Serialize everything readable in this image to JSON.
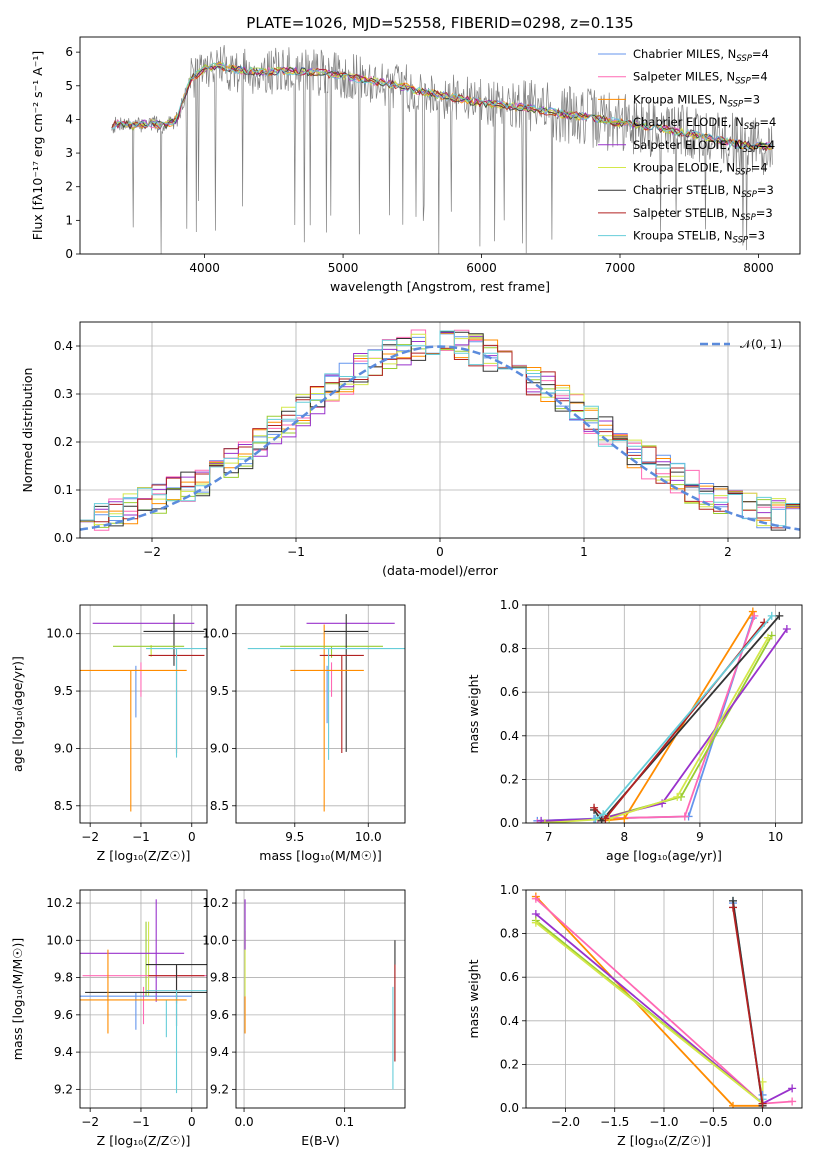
{
  "title": "PLATE=1026, MJD=52558, FIBERID=0298, z=0.135",
  "chart_data": [
    {
      "id": "spectrum",
      "type": "line",
      "xlabel": "wavelength [Angstrom, rest frame]",
      "ylabel": "Flux [fλ10⁻¹⁷ erg cm⁻² s⁻¹ A⁻¹]",
      "xlim": [
        3100,
        8300
      ],
      "ylim": [
        0,
        6.45
      ],
      "xticks": [
        4000,
        5000,
        6000,
        7000,
        8000
      ],
      "yticks": [
        0,
        1,
        2,
        3,
        4,
        5,
        6
      ],
      "grid": false,
      "legend": "top-right",
      "observed_color": "#808080",
      "continuum": {
        "x": [
          3330,
          3400,
          3500,
          3600,
          3700,
          3800,
          3900,
          4000,
          4100,
          4200,
          4400,
          4600,
          4800,
          5000,
          5200,
          5400,
          5600,
          5800,
          6000,
          6200,
          6400,
          6600,
          6800,
          7000,
          7200,
          7400,
          7600,
          7800,
          8000,
          8100
        ],
        "y": [
          3.8,
          3.9,
          3.8,
          3.9,
          3.8,
          4.0,
          5.2,
          5.5,
          5.6,
          5.5,
          5.4,
          5.45,
          5.4,
          5.3,
          5.15,
          5.0,
          4.8,
          4.65,
          4.5,
          4.4,
          4.3,
          4.15,
          4.05,
          3.9,
          3.8,
          3.65,
          3.5,
          3.3,
          3.2,
          3.2
        ]
      },
      "series": [
        {
          "name": "Chabrier MILES, N",
          "sub": "SSP",
          "count": "=4",
          "color": "#6495ed"
        },
        {
          "name": "Salpeter MILES, N",
          "sub": "SSP",
          "count": "=4",
          "color": "#ff69b4"
        },
        {
          "name": "Kroupa MILES, N",
          "sub": "SSP",
          "count": "=3",
          "color": "#ff8c00"
        },
        {
          "name": "Chabrier ELODIE, N",
          "sub": "SSP",
          "count": "=4",
          "color": "#9acd32"
        },
        {
          "name": "Salpeter ELODIE, N",
          "sub": "SSP",
          "count": "=4",
          "color": "#9932cc"
        },
        {
          "name": "Kroupa ELODIE, N",
          "sub": "SSP",
          "count": "=4",
          "color": "#d4e84a"
        },
        {
          "name": "Chabrier STELIB, N",
          "sub": "SSP",
          "count": "=3",
          "color": "#333333"
        },
        {
          "name": "Salpeter STELIB, N",
          "sub": "SSP",
          "count": "=3",
          "color": "#b22222"
        },
        {
          "name": "Kroupa STELIB, N",
          "sub": "SSP",
          "count": "=3",
          "color": "#66cdd9"
        }
      ]
    },
    {
      "id": "residuals",
      "type": "line",
      "xlabel": "(data-model)/error",
      "ylabel": "Normed distribution",
      "xlim": [
        -2.5,
        2.5
      ],
      "ylim": [
        0,
        0.45
      ],
      "xticks": [
        -2,
        -1,
        0,
        1,
        2
      ],
      "yticks": [
        0.0,
        0.1,
        0.2,
        0.3,
        0.4
      ],
      "grid": true,
      "legend": "top-right",
      "gaussian": {
        "name": "𝒩(0, 1)",
        "mean": 0,
        "sigma": 1,
        "color": "#5b8bdc"
      },
      "bin_width": 0.1
    },
    {
      "id": "age-vs-Z",
      "type": "scatter",
      "xlabel": "Z [log₁₀(Z/Z☉)]",
      "ylabel": "age  [log₁₀(age/yr)]",
      "xlim": [
        -2.2,
        0.3
      ],
      "ylim": [
        8.35,
        10.25
      ],
      "xticks": [
        -2,
        -1,
        0
      ],
      "yticks": [
        8.5,
        9.0,
        9.5,
        10.0
      ],
      "grid": true,
      "points": [
        {
          "x": -1.1,
          "xerr": 0.0,
          "y": 9.72,
          "yerr": [
            0.45,
            0.0
          ],
          "c": "#6495ed"
        },
        {
          "x": -1.0,
          "xerr": 0.0,
          "y": 9.75,
          "yerr": [
            0.3,
            0.0
          ],
          "c": "#ff69b4"
        },
        {
          "x": -0.8,
          "xerr": 0.0,
          "y": 9.9,
          "yerr": [
            0.1,
            0.0
          ],
          "c": "#9acd32"
        },
        {
          "x": -0.95,
          "xerr": 1.0,
          "y": 10.09,
          "yerr": [
            0.0,
            0.0
          ],
          "c": "#9932cc"
        },
        {
          "x": -0.8,
          "xerr": 0.0,
          "y": 9.9,
          "yerr": [
            0.1,
            0.0
          ],
          "c": "#d4e84a"
        },
        {
          "x": -0.35,
          "xerr": 0.6,
          "y": 10.02,
          "yerr": [
            0.3,
            0.15
          ],
          "c": "#333333"
        },
        {
          "x": -0.3,
          "xerr": 0.55,
          "y": 9.81,
          "yerr": [
            0.85,
            0.0
          ],
          "c": "#b22222"
        },
        {
          "x": -0.3,
          "xerr": 0.6,
          "y": 9.87,
          "yerr": [
            0.95,
            0.0
          ],
          "c": "#66cdd9"
        },
        {
          "x": -1.2,
          "xerr": 1.1,
          "y": 9.68,
          "yerr": [
            1.23,
            0.0
          ],
          "c": "#ff8c00"
        },
        {
          "x": -0.85,
          "xerr": 0.7,
          "y": 9.89,
          "yerr": [
            0.0,
            0.0
          ],
          "c": "#9acd32"
        }
      ]
    },
    {
      "id": "age-vs-mass",
      "type": "scatter",
      "xlabel": "mass [log₁₀(M/M☉)]",
      "ylabel": "",
      "xlim": [
        9.1,
        10.25
      ],
      "ylim": [
        8.35,
        10.25
      ],
      "xticks": [
        9.5,
        10.0
      ],
      "yticks": [
        8.5,
        9.0,
        9.5,
        10.0
      ],
      "grid": true,
      "points": [
        {
          "x": 9.72,
          "xerr": 0.0,
          "y": 9.72,
          "yerr": [
            0.5,
            0.0
          ],
          "c": "#6495ed"
        },
        {
          "x": 9.75,
          "xerr": 0.0,
          "y": 9.75,
          "yerr": [
            0.3,
            0.0
          ],
          "c": "#ff69b4"
        },
        {
          "x": 9.7,
          "xerr": 0.0,
          "y": 9.68,
          "yerr": [
            1.23,
            0.4
          ],
          "c": "#ff8c00"
        },
        {
          "x": 9.88,
          "xerr": 0.3,
          "y": 10.09,
          "yerr": [
            0.0,
            0.0
          ],
          "c": "#9932cc"
        },
        {
          "x": 9.75,
          "xerr": 0.35,
          "y": 9.89,
          "yerr": [
            0.1,
            0.0
          ],
          "c": "#9acd32"
        },
        {
          "x": 9.85,
          "xerr": 0.15,
          "y": 10.02,
          "yerr": [
            1.05,
            0.15
          ],
          "c": "#333333"
        },
        {
          "x": 9.82,
          "xerr": 0.15,
          "y": 9.81,
          "yerr": [
            0.85,
            0.0
          ],
          "c": "#b22222"
        },
        {
          "x": 9.73,
          "xerr": 0.55,
          "y": 9.87,
          "yerr": [
            0.97,
            0.0
          ],
          "c": "#66cdd9"
        },
        {
          "x": 9.72,
          "xerr": 0.25,
          "y": 9.68,
          "yerr": [
            0.0,
            0.0
          ],
          "c": "#ff8c00"
        }
      ]
    },
    {
      "id": "mw-vs-age",
      "type": "line",
      "xlabel": "age  [log₁₀(age/yr)]",
      "ylabel": "mass weight",
      "xlim": [
        6.7,
        10.35
      ],
      "ylim": [
        0,
        1
      ],
      "xticks": [
        7,
        8,
        9,
        10
      ],
      "yticks": [
        0.0,
        0.2,
        0.4,
        0.6,
        0.8,
        1.0
      ],
      "grid": true,
      "series": [
        {
          "c": "#6495ed",
          "x": [
            6.85,
            7.6,
            8.85,
            9.7
          ],
          "y": [
            0.01,
            0.02,
            0.03,
            0.94
          ]
        },
        {
          "c": "#ff69b4",
          "x": [
            6.85,
            7.65,
            8.8,
            9.72
          ],
          "y": [
            0.0,
            0.02,
            0.03,
            0.95
          ]
        },
        {
          "c": "#ff8c00",
          "x": [
            7.7,
            8.0,
            9.7
          ],
          "y": [
            0.01,
            0.02,
            0.97
          ]
        },
        {
          "c": "#9acd32",
          "x": [
            6.9,
            7.7,
            8.75,
            9.95
          ],
          "y": [
            0.0,
            0.02,
            0.12,
            0.86
          ]
        },
        {
          "c": "#9932cc",
          "x": [
            6.9,
            7.7,
            8.5,
            10.15
          ],
          "y": [
            0.01,
            0.02,
            0.09,
            0.89
          ]
        },
        {
          "c": "#d4e84a",
          "x": [
            6.95,
            7.8,
            8.7,
            9.9
          ],
          "y": [
            0.0,
            0.02,
            0.12,
            0.85
          ]
        },
        {
          "c": "#333333",
          "x": [
            7.6,
            7.7,
            10.05
          ],
          "y": [
            0.06,
            0.01,
            0.95
          ]
        },
        {
          "c": "#b22222",
          "x": [
            7.6,
            7.75,
            9.85
          ],
          "y": [
            0.07,
            0.02,
            0.92
          ]
        },
        {
          "c": "#66cdd9",
          "x": [
            7.62,
            7.72,
            9.95
          ],
          "y": [
            0.02,
            0.04,
            0.95
          ]
        }
      ]
    },
    {
      "id": "mass-vs-Z",
      "type": "scatter",
      "xlabel": "Z [log₁₀(Z/Z☉)]",
      "ylabel": "mass [log₁₀(M/M☉)]",
      "xlim": [
        -2.2,
        0.3
      ],
      "ylim": [
        9.1,
        10.27
      ],
      "xticks": [
        -2,
        -1,
        0
      ],
      "yticks": [
        9.2,
        9.4,
        9.6,
        9.8,
        10.0,
        10.2
      ],
      "grid": true,
      "points": [
        {
          "x": -1.1,
          "xerr": 0.0,
          "y": 9.72,
          "yerr": [
            0.2,
            0.0
          ],
          "c": "#6495ed"
        },
        {
          "x": -0.95,
          "xerr": 0.0,
          "y": 9.75,
          "yerr": [
            0.2,
            0.0
          ],
          "c": "#ff69b4"
        },
        {
          "x": -0.9,
          "xerr": 0.0,
          "y": 9.9,
          "yerr": [
            0.2,
            0.2
          ],
          "c": "#9acd32"
        },
        {
          "x": -0.7,
          "xerr": 0.0,
          "y": 9.92,
          "yerr": [
            0.25,
            0.3
          ],
          "c": "#9932cc"
        },
        {
          "x": -0.85,
          "xerr": 0.0,
          "y": 9.9,
          "yerr": [
            0.2,
            0.2
          ],
          "c": "#d4e84a"
        },
        {
          "x": -0.9,
          "xerr": 1.2,
          "y": 9.72,
          "yerr": [
            0.0,
            0.0
          ],
          "c": "#333333"
        },
        {
          "x": -1.1,
          "xerr": 1.1,
          "y": 9.7,
          "yerr": [
            0.0,
            0.0
          ],
          "c": "#6495ed"
        },
        {
          "x": -0.9,
          "xerr": 1.25,
          "y": 9.81,
          "yerr": [
            0.0,
            0.0
          ],
          "c": "#ff69b4"
        },
        {
          "x": -1.2,
          "xerr": 1.05,
          "y": 9.93,
          "yerr": [
            0.0,
            0.0
          ],
          "c": "#9932cc"
        },
        {
          "x": -0.5,
          "xerr": 0.0,
          "y": 9.68,
          "yerr": [
            0.2,
            0.0
          ],
          "c": "#66cdd9"
        },
        {
          "x": -0.3,
          "xerr": 0.55,
          "y": 9.81,
          "yerr": [
            0.15,
            0.05
          ],
          "c": "#b22222"
        },
        {
          "x": -0.3,
          "xerr": 0.6,
          "y": 9.87,
          "yerr": [
            0.33,
            0.0
          ],
          "c": "#333333"
        },
        {
          "x": -0.3,
          "xerr": 0.6,
          "y": 9.73,
          "yerr": [
            0.55,
            0.0
          ],
          "c": "#66cdd9"
        },
        {
          "x": -1.2,
          "xerr": 1.1,
          "y": 9.68,
          "yerr": [
            0.0,
            0.0
          ],
          "c": "#ff8c00"
        },
        {
          "x": -1.65,
          "xerr": 0.0,
          "y": 9.68,
          "yerr": [
            0.18,
            0.27
          ],
          "c": "#ff8c00"
        }
      ]
    },
    {
      "id": "mass-vs-ebv",
      "type": "scatter",
      "xlabel": "E(B-V)",
      "ylabel": "",
      "xlim": [
        -0.008,
        0.16
      ],
      "ylim": [
        9.1,
        10.27
      ],
      "xticks": [
        0.0,
        0.1
      ],
      "yticks": [
        9.2,
        9.4,
        9.6,
        9.8,
        10.0,
        10.2
      ],
      "grid": true,
      "points": [
        {
          "x": 0.001,
          "xerr": 0.0,
          "y": 9.7,
          "yerr": [
            0.2,
            0.0
          ],
          "c": "#ff8c00"
        },
        {
          "x": 0.001,
          "xerr": 0.0,
          "y": 9.9,
          "yerr": [
            0.2,
            0.15
          ],
          "c": "#d4e84a"
        },
        {
          "x": 0.001,
          "xerr": 0.0,
          "y": 10.0,
          "yerr": [
            0.05,
            0.22
          ],
          "c": "#9932cc"
        },
        {
          "x": 0.148,
          "xerr": 0.0,
          "y": 9.75,
          "yerr": [
            0.55,
            0.0
          ],
          "c": "#66cdd9"
        },
        {
          "x": 0.15,
          "xerr": 0.0,
          "y": 9.8,
          "yerr": [
            0.45,
            0.2
          ],
          "c": "#333333"
        },
        {
          "x": 0.15,
          "xerr": 0.0,
          "y": 9.55,
          "yerr": [
            0.2,
            0.32
          ],
          "c": "#b22222"
        }
      ]
    },
    {
      "id": "mw-vs-Z",
      "type": "line",
      "xlabel": "Z [log₁₀(Z/Z☉)]",
      "ylabel": "mass weight",
      "xlim": [
        -2.4,
        0.4
      ],
      "ylim": [
        0,
        1
      ],
      "xticks": [
        -2.0,
        -1.5,
        -1.0,
        -0.5,
        0.0
      ],
      "yticks": [
        0.0,
        0.2,
        0.4,
        0.6,
        0.8,
        1.0
      ],
      "grid": true,
      "series": [
        {
          "c": "#ff8c00",
          "x": [
            -2.3,
            -0.3,
            0.0
          ],
          "y": [
            0.97,
            0.01,
            0.01
          ]
        },
        {
          "c": "#ff69b4",
          "x": [
            -2.3,
            0.0,
            0.3
          ],
          "y": [
            0.96,
            0.02,
            0.03
          ]
        },
        {
          "c": "#9932cc",
          "x": [
            -2.3,
            0.0,
            0.3
          ],
          "y": [
            0.89,
            0.02,
            0.09
          ]
        },
        {
          "c": "#9acd32",
          "x": [
            -2.3,
            0.0
          ],
          "y": [
            0.86,
            0.02
          ]
        },
        {
          "c": "#d4e84a",
          "x": [
            -2.3,
            0.0,
            0.0
          ],
          "y": [
            0.85,
            0.02,
            0.12
          ]
        },
        {
          "c": "#6495ed",
          "x": [
            -0.3,
            0.0,
            0.0
          ],
          "y": [
            0.94,
            0.02,
            0.06
          ]
        },
        {
          "c": "#66cdd9",
          "x": [
            -0.3,
            0.0,
            0.0
          ],
          "y": [
            0.95,
            0.02,
            0.04
          ]
        },
        {
          "c": "#333333",
          "x": [
            -0.3,
            0.0
          ],
          "y": [
            0.95,
            0.01
          ]
        },
        {
          "c": "#b22222",
          "x": [
            -0.3,
            0.0
          ],
          "y": [
            0.92,
            0.02
          ]
        }
      ]
    }
  ]
}
